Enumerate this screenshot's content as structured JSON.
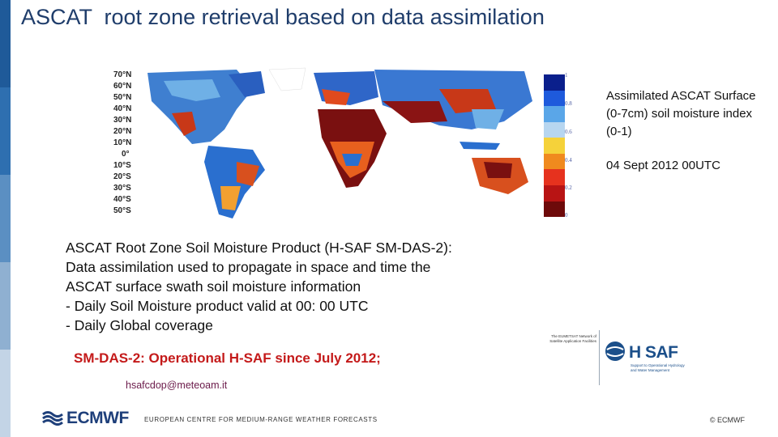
{
  "slide": {
    "title": "ASCAT  root zone retrieval based on data assimilation"
  },
  "map": {
    "latitude_labels": [
      "70°N",
      "60°N",
      "50°N",
      "40°N",
      "30°N",
      "20°N",
      "10°N",
      "0°",
      "10°S",
      "20°S",
      "30°S",
      "40°S",
      "50°S"
    ],
    "colorbar": {
      "ticks": [
        "1",
        "0.8",
        "0.6",
        "0.4",
        "0.2",
        "0"
      ],
      "colors": [
        "#0a1f8c",
        "#1e5adc",
        "#5aa6e8",
        "#b7d6f0",
        "#f5d23a",
        "#f08a1e",
        "#e6321e",
        "#b81414",
        "#6e0a0a"
      ]
    },
    "caption": "Assimilated ASCAT Surface (0-7cm) soil moisture index (0-1)",
    "date": "04 Sept 2012 00UTC"
  },
  "body": {
    "lines": [
      "ASCAT Root Zone Soil Moisture Product (H-SAF SM-DAS-2):",
      "Data assimilation used to propagate in space and time the",
      "ASCAT surface swath soil moisture information",
      "- Daily Soil Moisture product valid at 00: 00 UTC",
      "- Daily Global coverage"
    ],
    "highlight": "SM-DAS-2: Operational H-SAF since July 2012;",
    "email": "hsafcdop@meteoam.it"
  },
  "logos": {
    "eumetsat_text": "The EUMETSAT Network of Satellite Application Facilities",
    "hsaf_name": "H SAF",
    "hsaf_subtitle": "Support to Operational Hydrology and Water Management",
    "ecmwf_name": "ECMWF"
  },
  "footer": {
    "text": "EUROPEAN CENTRE FOR MEDIUM-RANGE WEATHER FORECASTS",
    "copyright": "© ECMWF"
  },
  "sidebar": {
    "colors": [
      "#1f5a99",
      "#2e6fb0",
      "#5b8fc2",
      "#8fb0d1",
      "#c3d4e6"
    ]
  }
}
